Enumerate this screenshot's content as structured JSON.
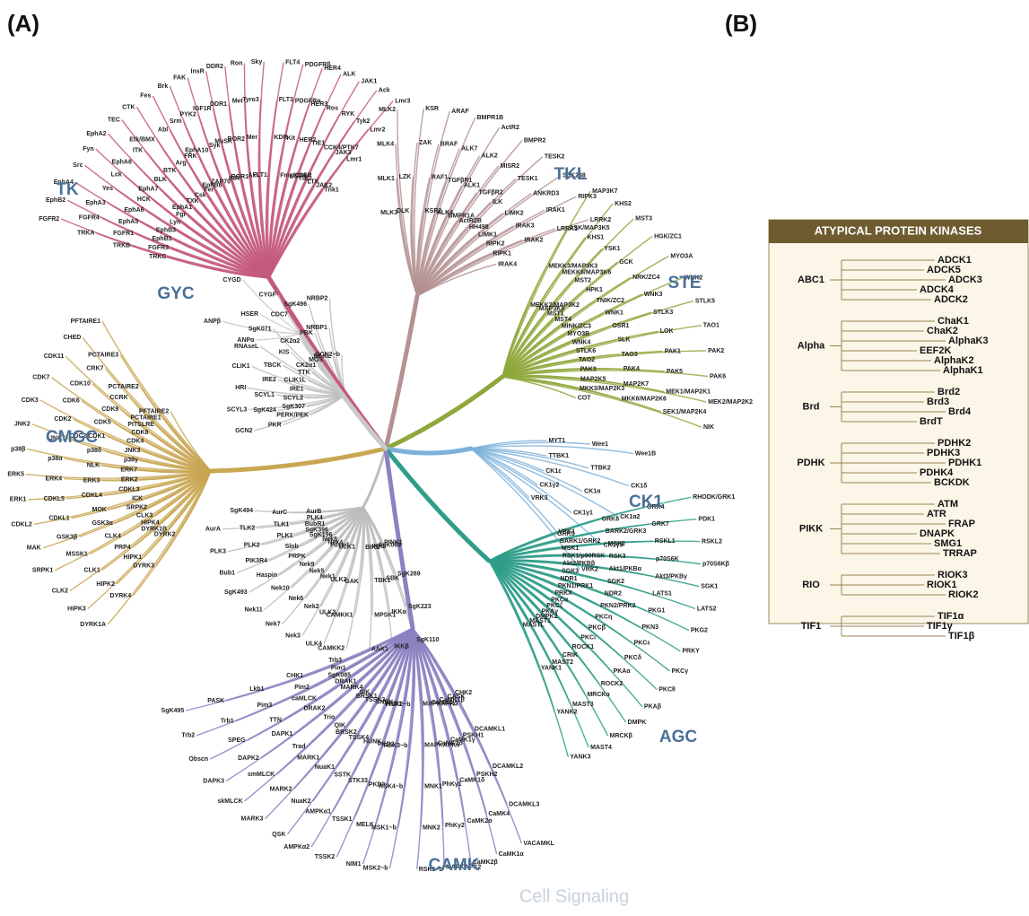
{
  "panel_labels": {
    "a": "(A)",
    "b": "(B)"
  },
  "groups": [
    {
      "name": "TK",
      "color": "#c4597f",
      "kinases": [
        "TRKC",
        "TRKB",
        "TRKA",
        "FGFR2",
        "FGFR3",
        "FGFR1",
        "FGFR4",
        "EphB2",
        "EphB1",
        "EphA5",
        "EphA3",
        "EphA4",
        "EphB3",
        "EphA6",
        "Yes",
        "Src",
        "Lyn",
        "HCK",
        "Lck",
        "Fyn",
        "Fgr",
        "EphA7",
        "EphA8",
        "EphA2",
        "EphA1",
        "BLK",
        "ITK",
        "TEC",
        "TXK",
        "BTK",
        "Etk/BMX",
        "CTK",
        "Csk",
        "Arg",
        "Abl",
        "Fes",
        "Fer",
        "FRK",
        "Srm",
        "Brk",
        "EphB6",
        "EphA10",
        "PYK2",
        "FAK",
        "ZAP70",
        "Syk",
        "IGF1R",
        "InsR",
        "IRR",
        "MuSK",
        "DDR1",
        "DDR2",
        "ROR1",
        "ROR2",
        "Met",
        "Ron",
        "Axl",
        "Mer",
        "Tyro3",
        "Sky",
        "FLT1",
        "KDR",
        "FLT3",
        "FLT4",
        "Fms/CSFR",
        "Kit",
        "PDGFRα",
        "PDGFRβ",
        "EGFR",
        "HER2",
        "HER3",
        "HER4",
        "TIE2",
        "TIE1",
        "Ros",
        "ALK",
        "LTK",
        "CCK4/PTK7",
        "RYK",
        "JAK1",
        "JAK2",
        "JAK3",
        "Tyk2",
        "Ack",
        "Tnk1",
        "Lmr1",
        "Lmr2",
        "Lmr3"
      ]
    },
    {
      "name": "TKL",
      "color": "#b49192",
      "kinases": [
        "MLK3",
        "MLK1",
        "MLK4",
        "MLK2",
        "DLK",
        "LZK",
        "ZAK",
        "KSR",
        "KSR2",
        "RAF1",
        "BRAF",
        "ARAF",
        "ALK4",
        "TGFβR1",
        "ALK7",
        "BMPR1B",
        "BMPR1A",
        "ALK1",
        "ALK2",
        "ActR2",
        "ActR2B",
        "TGFβR2",
        "MISR2",
        "BMPR2",
        "HH498",
        "ILK",
        "TESK1",
        "TESK2",
        "LIMK1",
        "LIMK2",
        "ANKRD3",
        "SgK288",
        "RIPK2",
        "IRAK3",
        "IRAK1",
        "RIPK3",
        "RIPK1",
        "IRAK2",
        "LRRK1",
        "LRRK2",
        "IRAK4"
      ]
    },
    {
      "name": "STE",
      "color": "#8fa83c",
      "kinases": [
        "MEKK2/MAP3K2",
        "MEKK3/MAP3K3",
        "ASK/MAP3K5",
        "MAP3K7",
        "MAP3K8",
        "MEKK6/MAP3K6",
        "KHS1",
        "KHS2",
        "MST1",
        "MST2",
        "YSK1",
        "MST3",
        "MST4",
        "HPK1",
        "GCK",
        "HGK/ZC1",
        "MINK/ZC3",
        "TNIK/ZC2",
        "NRK/ZC4",
        "MYO3A",
        "MYO3B",
        "WNK1",
        "WNK3",
        "WNK2",
        "WNK4",
        "OSR1",
        "STLK3",
        "STLK5",
        "STLK6",
        "SLK",
        "LOK",
        "TAO1",
        "TAO2",
        "TAO3",
        "PAK1",
        "PAK2",
        "PAK3",
        "PAK4",
        "PAK5",
        "PAK6",
        "MAP2K5",
        "MAP2K7",
        "MEK1/MAP2K1",
        "MEK2/MAP2K2",
        "MKK3/MAP2K3",
        "MKK6/MAP2K6",
        "SEK1/MAP2K4",
        "NIK",
        "COT"
      ]
    },
    {
      "name": "CK1",
      "color": "#7eb1da",
      "kinases": [
        "MYT1",
        "Wee1",
        "Wee1B",
        "TTBK1",
        "TTBK2",
        "CK1δ",
        "CK1ε",
        "CK1α",
        "CK1α2",
        "CK1γ2",
        "CK1γ1",
        "CK1γ3",
        "VRK3",
        "VRK1",
        "VRK2"
      ]
    },
    {
      "name": "AGC",
      "color": "#2f9d89",
      "kinases": [
        "GRK5",
        "GRK6",
        "GRK4",
        "RHODK/GRK1",
        "BARK1/GRK2",
        "BARK2/GRK3",
        "GRK7",
        "PDK1",
        "MSK1",
        "MSK2",
        "RSKL1",
        "RSKL2",
        "RSK1/p90RSK",
        "RSK3",
        "p70S6K",
        "p70S6Kβ",
        "Akt2/PKBβ",
        "Akt1/PKBα",
        "Akt3/PKBγ",
        "SGK1",
        "SGK3",
        "SGK2",
        "LATS1",
        "LATS2",
        "NDR1",
        "NDR2",
        "PKG1",
        "PKG2",
        "PKN1/PRK1",
        "PKN2/PRK2",
        "PKN3",
        "PRKY",
        "PRKX",
        "PKCη",
        "PKCε",
        "PKCγ",
        "PKCα",
        "PKCβ",
        "PKCδ",
        "PKCθ",
        "PKCζ",
        "PKCι",
        "PKAα",
        "PKAβ",
        "PKAγ",
        "ROCK1",
        "ROCK2",
        "DMPK",
        "DMPK2",
        "CRIK",
        "MRCKα",
        "MRCKβ",
        "MAST1",
        "MAST2",
        "MAST3",
        "MAST4",
        "MASTL",
        "YANK1",
        "YANK2",
        "YANK3"
      ]
    },
    {
      "name": "CAMK",
      "color": "#8b82c2",
      "kinases": [
        "CHK2",
        "DCAMKL1",
        "DCAMKL2",
        "DCAMKL3",
        "VACAMKL",
        "CASK",
        "PSKH1",
        "PSKH2",
        "CaMK4",
        "CaMK1α",
        "CaMK1β",
        "CaMK1γ",
        "CaMK1δ",
        "CaMK2α",
        "CaMK2β",
        "CaMK2γ",
        "CaMK2δ",
        "PhKγ1",
        "PhKγ2",
        "MAPKAPK2",
        "MAPKAPK3",
        "MAPKAPK5",
        "MNK1",
        "MNK2",
        "RSK1~b",
        "RSK2~b",
        "RSK3~b",
        "RSK4~b",
        "MSK1~b",
        "MSK2~b",
        "PKD1",
        "PKD2",
        "PKD3",
        "MELK",
        "NIM1",
        "SNRK",
        "HUNK",
        "STK33",
        "TSSK1",
        "TSSK2",
        "TSSK3",
        "TSSK4",
        "SSTK",
        "AMPKα1",
        "AMPKα2",
        "BRSK1",
        "BRSK2",
        "NuaK1",
        "NuaK2",
        "QSK",
        "SIK",
        "QIK",
        "MARK1",
        "MARK2",
        "MARK3",
        "MARK4",
        "Trio",
        "Trad",
        "smMLCK",
        "skMLCK",
        "DRAK1",
        "DRAK2",
        "DAPK1",
        "DAPK2",
        "DAPK3",
        "SgK085",
        "caMLCK",
        "TTN",
        "SPEG",
        "Obscn",
        "Pim1",
        "Pim2",
        "Pim3",
        "Trb1",
        "Trb2",
        "Trb3",
        "CHK1",
        "Lkb1",
        "PASK",
        "SgK495"
      ]
    },
    {
      "name": "CMGC",
      "color": "#c9a652",
      "kinases": [
        "DYRK2",
        "DYRK3",
        "DYRK4",
        "DYRK1A",
        "DYRK1B",
        "HIPK1",
        "HIPK2",
        "HIPK3",
        "HIPK4",
        "PRP4",
        "CLK1",
        "CLK2",
        "CLK3",
        "CLK4",
        "MSSK1",
        "SRPK1",
        "SRPK2",
        "GSK3α",
        "GSK3β",
        "MAK",
        "ICK",
        "MOK",
        "CDKL1",
        "CDKL2",
        "CDKL3",
        "CDKL4",
        "CDKL5",
        "ERK1",
        "ERK2",
        "ERK3",
        "ERK4",
        "ERK5",
        "ERK7",
        "NLK",
        "p38α",
        "p38β",
        "p38γ",
        "p38δ",
        "JNK1",
        "JNK2",
        "JNK3",
        "CDC2/CDK1",
        "CDK2",
        "CDK3",
        "CDK4",
        "CDK5",
        "CDK6",
        "CDK7",
        "CDK8",
        "CDK9",
        "CDK10",
        "CDK11",
        "PITSLRE",
        "CCRK",
        "CRK7",
        "CHED",
        "PCTAIRE1",
        "PCTAIRE2",
        "PCTAIRE3",
        "PFTAIRE1",
        "PFTAIRE2"
      ]
    },
    {
      "name": "GYC",
      "color": "#c9c9c9",
      "kinases": [
        "ANPα",
        "ANPβ",
        "HSER",
        "CYGD",
        "CYGF"
      ]
    }
  ],
  "other_color": "#bdbdbd",
  "other_upper": [
    "PERK/PEK",
    "PKR",
    "GCN2",
    "SgK307",
    "SgK424",
    "SCYL3",
    "SCYL2",
    "SCYL1",
    "HRI",
    "IRE1",
    "IRE2",
    "CLIK1",
    "CLIK1L",
    "TBCK",
    "RNAseL",
    "TTK",
    "KIS",
    "SgK071",
    "CK2α1",
    "CK2α2",
    "CDC7",
    "MOS",
    "PBK",
    "SgK496",
    "MLKL",
    "NRBP1",
    "NRBP2",
    "GCN2~b"
  ],
  "other_lower": [
    "PINK1",
    "SgK269",
    "SgK223",
    "SgK110",
    "SgK069",
    "SBK",
    "IKKα",
    "IKKβ",
    "IKKε",
    "TBK1",
    "MPSK1",
    "AAK1",
    "BIKE",
    "GAK",
    "CAMKK1",
    "CAMKK2",
    "ULK1",
    "ULK2",
    "ULK3",
    "ULK4",
    "Fused",
    "Nek1",
    "Nek2",
    "Nek3",
    "Nek4",
    "Nek5",
    "Nek6",
    "Nek7",
    "Nek8",
    "Nek9",
    "Nek10",
    "Nek11",
    "SgK196",
    "PRPK",
    "Haspin",
    "SgK493",
    "SgK396",
    "Slob",
    "PIK3R4",
    "Bub1",
    "BubR1",
    "PLK1",
    "PLK2",
    "PLK3",
    "PLK4",
    "TLK1",
    "TLK2",
    "AurA",
    "AurB",
    "AurC",
    "SgK494"
  ],
  "atypical": {
    "title": "ATYPICAL PROTEIN KINASES",
    "families": [
      {
        "name": "ABC1",
        "members": [
          "ADCK1",
          "ADCK5",
          "ADCK3",
          "ADCK4",
          "ADCK2"
        ]
      },
      {
        "name": "Alpha",
        "members": [
          "ChaK1",
          "ChaK2",
          "AlphaK3",
          "EEF2K",
          "AlphaK2",
          "AlphaK1"
        ]
      },
      {
        "name": "Brd",
        "members": [
          "Brd2",
          "Brd3",
          "Brd4",
          "BrdT"
        ]
      },
      {
        "name": "PDHK",
        "members": [
          "PDHK2",
          "PDHK3",
          "PDHK1",
          "PDHK4",
          "BCKDK"
        ]
      },
      {
        "name": "PIKK",
        "members": [
          "ATM",
          "ATR",
          "FRAP",
          "DNAPK",
          "SMG1",
          "TRRAP"
        ]
      },
      {
        "name": "RIO",
        "members": [
          "RIOK3",
          "RIOK1",
          "RIOK2"
        ]
      },
      {
        "name": "TIF1",
        "members": [
          "TIF1α",
          "TIF1γ",
          "TIF1β"
        ]
      }
    ]
  },
  "watermark": "Cell Signaling"
}
